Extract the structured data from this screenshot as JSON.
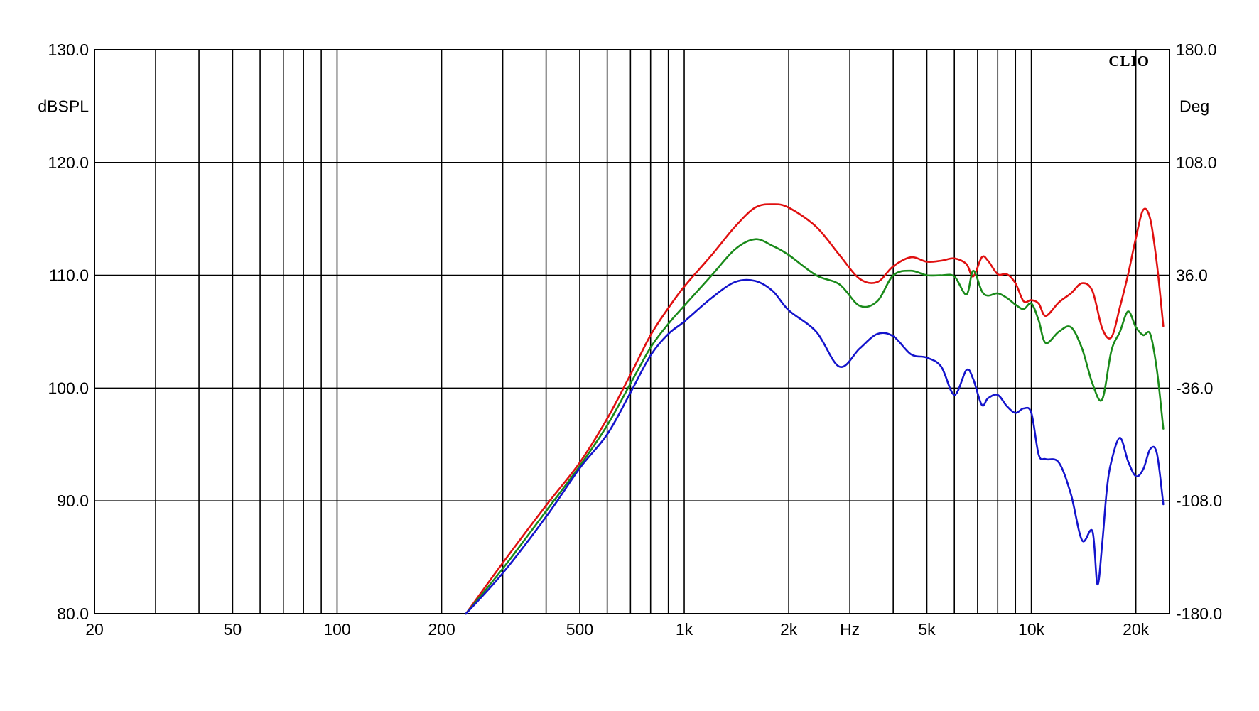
{
  "chart_data": {
    "type": "line",
    "title": "",
    "brand": "CLIO",
    "xlabel": "Hz",
    "ylabel": "dBSPL",
    "y2label": "Deg",
    "x_scale": "log",
    "xlim": [
      20,
      25000
    ],
    "ylim": [
      80,
      130
    ],
    "y2lim": [
      -180,
      180
    ],
    "grid": true,
    "x_ticks": [
      {
        "value": 20,
        "label": "20"
      },
      {
        "value": 50,
        "label": "50"
      },
      {
        "value": 100,
        "label": "100"
      },
      {
        "value": 200,
        "label": "200"
      },
      {
        "value": 500,
        "label": "500"
      },
      {
        "value": 1000,
        "label": "1k"
      },
      {
        "value": 2000,
        "label": "2k"
      },
      {
        "value": 5000,
        "label": "5k"
      },
      {
        "value": 10000,
        "label": "10k"
      },
      {
        "value": 20000,
        "label": "20k"
      }
    ],
    "y_ticks": [
      "80.0",
      "90.0",
      "100.0",
      "110.0",
      "120.0",
      "130.0"
    ],
    "y2_ticks": [
      "-180.0",
      "-108.0",
      "-36.0",
      "36.0",
      "108.0",
      "180.0"
    ],
    "series": [
      {
        "color": "#e01010",
        "x": [
          235,
          300,
          400,
          500,
          600,
          700,
          800,
          900,
          1000,
          1200,
          1400,
          1600,
          1800,
          2000,
          2400,
          2800,
          3200,
          3600,
          4000,
          4500,
          5000,
          5500,
          6000,
          6500,
          6800,
          7200,
          7500,
          8000,
          8500,
          9000,
          9500,
          10000,
          10500,
          11000,
          12000,
          13000,
          14000,
          15000,
          16000,
          17000,
          18000,
          19000,
          20000,
          21000,
          22000,
          23000,
          24000
        ],
        "y": [
          80.0,
          84.5,
          89.6,
          93.4,
          97.3,
          101.2,
          104.7,
          107.1,
          109.0,
          111.8,
          114.3,
          116.0,
          116.3,
          116.0,
          114.3,
          111.8,
          109.7,
          109.4,
          110.8,
          111.6,
          111.2,
          111.3,
          111.5,
          111.0,
          109.9,
          111.6,
          111.3,
          110.1,
          110.1,
          109.3,
          107.7,
          107.8,
          107.5,
          106.4,
          107.6,
          108.4,
          109.3,
          108.6,
          105.3,
          104.5,
          107.2,
          110.1,
          113.3,
          115.8,
          115.0,
          111.0,
          105.5
        ]
      },
      {
        "color": "#1a8a1a",
        "x": [
          235,
          300,
          400,
          500,
          600,
          700,
          800,
          900,
          1000,
          1200,
          1400,
          1600,
          1800,
          2000,
          2400,
          2800,
          3200,
          3600,
          4000,
          4500,
          5000,
          5500,
          6000,
          6500,
          6800,
          7200,
          7500,
          8000,
          8500,
          9000,
          9500,
          10000,
          10500,
          11000,
          12000,
          13000,
          14000,
          15000,
          16000,
          17000,
          18000,
          19000,
          20000,
          21000,
          22000,
          23000,
          24000
        ],
        "y": [
          80.0,
          84.0,
          89.1,
          93.1,
          96.7,
          100.4,
          103.6,
          105.7,
          107.3,
          110.0,
          112.3,
          113.2,
          112.6,
          111.8,
          110.0,
          109.2,
          107.3,
          107.7,
          110.0,
          110.4,
          110.0,
          110.0,
          109.9,
          108.3,
          110.4,
          108.6,
          108.2,
          108.4,
          108.0,
          107.4,
          107.0,
          107.5,
          106.0,
          104.0,
          105.0,
          105.4,
          103.5,
          100.4,
          99.0,
          103.3,
          105.0,
          106.8,
          105.4,
          104.7,
          104.8,
          101.6,
          96.4
        ]
      },
      {
        "color": "#1414cc",
        "x": [
          235,
          300,
          400,
          500,
          600,
          700,
          800,
          900,
          1000,
          1200,
          1400,
          1600,
          1800,
          2000,
          2400,
          2800,
          3200,
          3600,
          4000,
          4500,
          5000,
          5500,
          6000,
          6500,
          6800,
          7200,
          7500,
          8000,
          8500,
          9000,
          9500,
          10000,
          10500,
          11000,
          12000,
          13000,
          14000,
          15000,
          15500,
          16000,
          16500,
          17000,
          18000,
          19000,
          20000,
          21000,
          22000,
          23000,
          24000
        ],
        "y": [
          80.0,
          83.6,
          88.6,
          92.9,
          95.9,
          99.6,
          102.9,
          104.8,
          105.9,
          108.0,
          109.4,
          109.5,
          108.6,
          106.9,
          105.0,
          101.9,
          103.5,
          104.8,
          104.6,
          103.0,
          102.7,
          101.9,
          99.4,
          101.6,
          100.8,
          98.5,
          99.1,
          99.4,
          98.4,
          97.8,
          98.2,
          97.8,
          94.1,
          93.7,
          93.4,
          90.6,
          86.5,
          87.3,
          82.6,
          86.2,
          91.0,
          93.5,
          95.6,
          93.5,
          92.2,
          92.8,
          94.6,
          94.2,
          89.7
        ]
      }
    ]
  }
}
